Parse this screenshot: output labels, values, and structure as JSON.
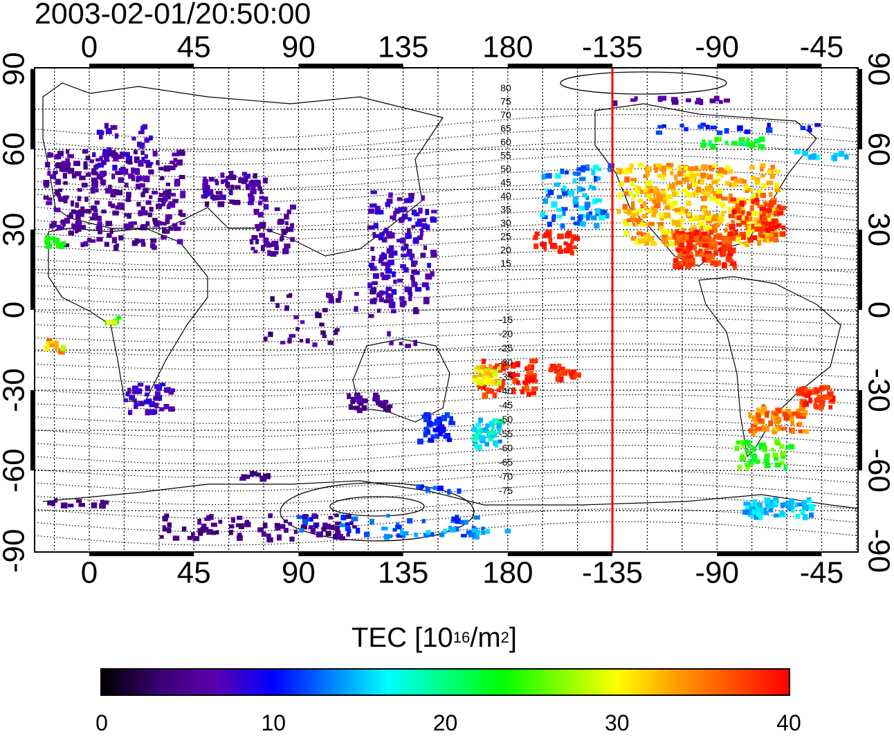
{
  "title": "2003-02-01/20:50:00",
  "map": {
    "longitude_ticks_top": [
      "0",
      "45",
      "90",
      "135",
      "180",
      "-135",
      "-90",
      "-45"
    ],
    "longitude_ticks_bottom": [
      "0",
      "45",
      "90",
      "135",
      "180",
      "-135",
      "-90",
      "-45"
    ],
    "latitude_ticks_left": [
      "90",
      "60",
      "30",
      "0",
      "-30",
      "-60",
      "-90"
    ],
    "latitude_ticks_right": [
      "90",
      "60",
      "30",
      "0",
      "-30",
      "-60",
      "-90"
    ],
    "magnetic_latitude_labels_north": [
      "80",
      "75",
      "70",
      "65",
      "60",
      "55",
      "50",
      "45",
      "40",
      "35",
      "30",
      "25",
      "20",
      "15"
    ],
    "magnetic_latitude_labels_south": [
      "-15",
      "-20",
      "-25",
      "-30",
      "-35",
      "-40",
      "-45",
      "-50",
      "-55",
      "-60",
      "-65",
      "-70",
      "-75"
    ],
    "marker_line": {
      "longitude": -135,
      "color": "#ff0000"
    }
  },
  "colorbar": {
    "label_main": "TEC  [10",
    "label_exp": "16",
    "label_unit": "/m",
    "label_unit_exp": "2",
    "label_close": "]",
    "min": 0,
    "max": 40,
    "ticks": [
      "0",
      "10",
      "20",
      "30",
      "40"
    ],
    "colors": [
      "#000000",
      "#3a0070",
      "#5a00b0",
      "#0000ff",
      "#0080ff",
      "#00ffff",
      "#00ff80",
      "#00ff00",
      "#80ff00",
      "#ffff00",
      "#ffa000",
      "#ff5000",
      "#ff0000"
    ]
  }
}
